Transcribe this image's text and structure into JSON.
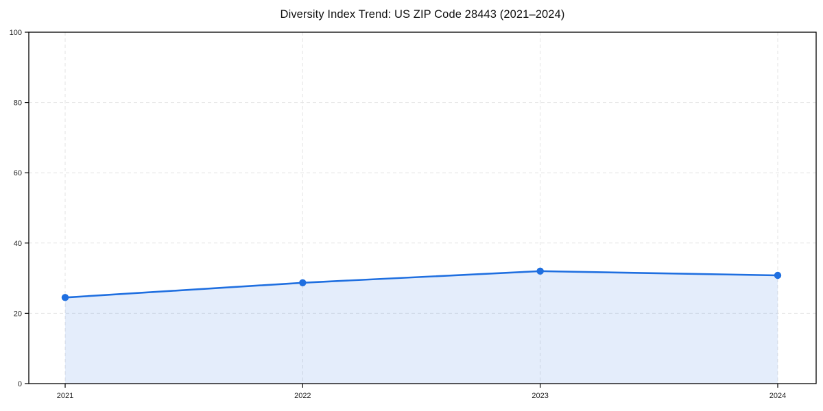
{
  "page": {
    "background": "#ffffff"
  },
  "chart_data": {
    "type": "line",
    "title": "Diversity Index Trend: US ZIP Code 28443 (2021–2024)",
    "categories": [
      "2021",
      "2022",
      "2023",
      "2024"
    ],
    "series": [
      {
        "name": "Diversity Index",
        "values": [
          24.5,
          28.7,
          32.0,
          30.8
        ]
      }
    ],
    "xlabel": "",
    "ylabel": "",
    "ylim": [
      0,
      100
    ],
    "yticks": [
      0,
      20,
      40,
      60,
      80,
      100
    ],
    "grid": "dashed, horizontal and vertical",
    "legend_position": "none",
    "area_fill": true,
    "markers": "filled circles",
    "colors": {
      "line": "#1f6fe0",
      "marker": "#1f6fe0",
      "area": "rgba(31, 111, 224, 0.12)",
      "grid": "#e3e3e3",
      "axis": "#000000",
      "tick_label": "#222222",
      "title": "#111111"
    }
  }
}
